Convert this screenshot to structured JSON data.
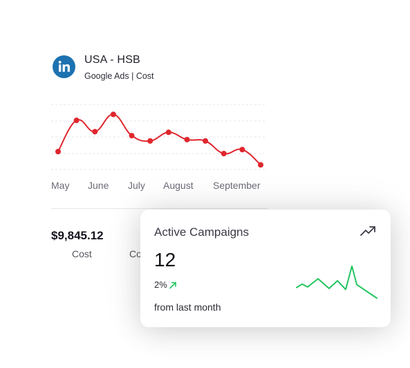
{
  "account": {
    "title": "USA - HSB",
    "subtitle": "Google Ads | Cost",
    "logo_icon": "linkedin-icon",
    "logo_color": "#1d72b0"
  },
  "chart_data": [
    {
      "type": "line",
      "title": "",
      "x_tick_labels": [
        "May",
        "June",
        "July",
        "August",
        "September"
      ],
      "series": [
        {
          "color": "#e0262d",
          "values": [
            28,
            75,
            58,
            84,
            52,
            44,
            57,
            46,
            44,
            25,
            31,
            8
          ]
        }
      ],
      "ylim": [
        0,
        100
      ],
      "grid": true,
      "grid_style": "dashed-horizontal"
    },
    {
      "type": "line",
      "title": "",
      "series": [
        {
          "color": "#22c55e",
          "values": [
            42,
            49,
            43,
            60,
            40,
            56,
            38,
            86,
            48,
            20
          ]
        }
      ],
      "ylim": [
        0,
        100
      ],
      "grid": false
    }
  ],
  "stats": {
    "cost_value": "$9,845.12",
    "cost_label": "Cost",
    "second_label_partial": "Co"
  },
  "campaigns": {
    "title": "Active Campaigns",
    "value": "12",
    "change": "2%",
    "change_direction": "up",
    "change_icon": "arrow-up-right-icon",
    "footnote": "from last month",
    "trend_icon": "trending-up-icon",
    "accent": "#22c55e"
  }
}
